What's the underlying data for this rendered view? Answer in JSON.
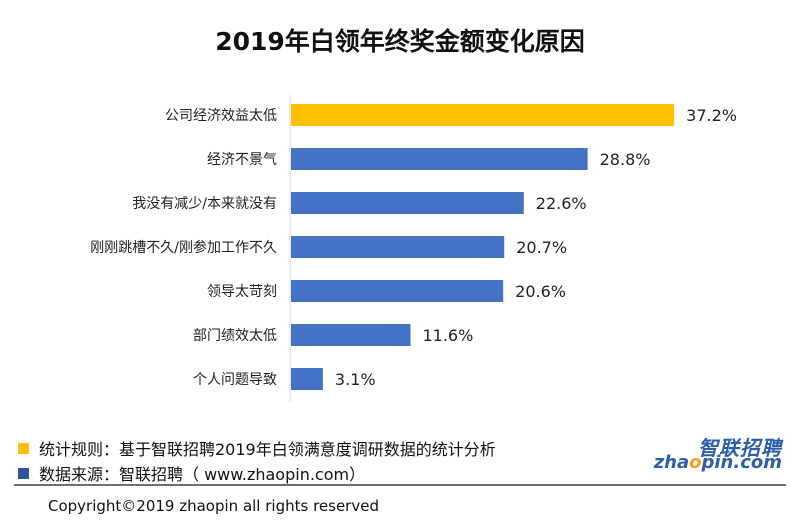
{
  "chart_data": {
    "type": "bar",
    "orientation": "horizontal",
    "title": "2019年白领年终奖金额变化原因",
    "categories": [
      "公司经济效益太低",
      "经济不景气",
      "我没有减少/本来就没有",
      "刚刚跳槽不久/刚参加工作不久",
      "领导太苛刻",
      "部门绩效太低",
      "个人问题导致"
    ],
    "values": [
      37.2,
      28.8,
      22.6,
      20.7,
      20.6,
      11.6,
      3.1
    ],
    "value_labels": [
      "37.2%",
      "28.8%",
      "22.6%",
      "20.7%",
      "20.6%",
      "11.6%",
      "3.1%"
    ],
    "unit": "%",
    "xlim": [
      0,
      40
    ],
    "grid": false,
    "colors": {
      "highlight": "#ffc000",
      "default": "#4472c4"
    },
    "highlight_index": 0
  },
  "notes": {
    "rule": "统计规则：基于智联招聘2019年白领满意度调研数据的统计分析",
    "source": "数据来源：智联招聘（ www.zhaopin.com）",
    "rule_color": "#ffc000",
    "source_color": "#2f5597"
  },
  "logo": {
    "cn": "智联招聘",
    "en_before": "zha",
    "en_dot": "o",
    "en_after": "pin.com"
  },
  "footer": {
    "copyright": "Copyright©2019 zhaopin all rights reserved"
  }
}
